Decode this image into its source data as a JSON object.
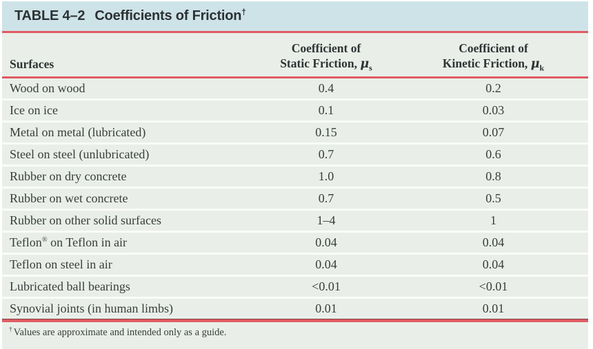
{
  "table": {
    "title": {
      "label": "TABLE 4–2",
      "text": "Coefficients of Friction",
      "sup": "†"
    },
    "columns": {
      "surfaces": "Surfaces",
      "static": {
        "line1": "Coefficient of",
        "line2": "Static Friction, ",
        "mu": "μ",
        "sub": "s"
      },
      "kinetic": {
        "line1": "Coefficient of",
        "line2": "Kinetic Friction, ",
        "mu": "μ",
        "sub": "k"
      }
    },
    "rows": [
      {
        "surface_pre": "Wood on wood",
        "surface_sup": "",
        "surface_post": "",
        "static": "0.4",
        "kinetic": "0.2"
      },
      {
        "surface_pre": "Ice on ice",
        "surface_sup": "",
        "surface_post": "",
        "static": "0.1",
        "kinetic": "0.03"
      },
      {
        "surface_pre": "Metal on metal (lubricated)",
        "surface_sup": "",
        "surface_post": "",
        "static": "0.15",
        "kinetic": "0.07"
      },
      {
        "surface_pre": "Steel on steel (unlubricated)",
        "surface_sup": "",
        "surface_post": "",
        "static": "0.7",
        "kinetic": "0.6"
      },
      {
        "surface_pre": "Rubber on dry concrete",
        "surface_sup": "",
        "surface_post": "",
        "static": "1.0",
        "kinetic": "0.8"
      },
      {
        "surface_pre": "Rubber on wet concrete",
        "surface_sup": "",
        "surface_post": "",
        "static": "0.7",
        "kinetic": "0.5"
      },
      {
        "surface_pre": "Rubber on other solid surfaces",
        "surface_sup": "",
        "surface_post": "",
        "static": "1–4",
        "kinetic": "1"
      },
      {
        "surface_pre": "Teflon",
        "surface_sup": "®",
        "surface_post": " on Teflon in air",
        "static": "0.04",
        "kinetic": "0.04"
      },
      {
        "surface_pre": "Teflon on steel in air",
        "surface_sup": "",
        "surface_post": "",
        "static": "0.04",
        "kinetic": "0.04"
      },
      {
        "surface_pre": "Lubricated ball bearings",
        "surface_sup": "",
        "surface_post": "",
        "static": "<0.01",
        "kinetic": "<0.01"
      },
      {
        "surface_pre": "Synovial joints (in human limbs)",
        "surface_sup": "",
        "surface_post": "",
        "static": "0.01",
        "kinetic": "0.01"
      }
    ],
    "footnote": {
      "sup": "†",
      "text": "Values are approximate and intended only as a guide."
    }
  },
  "colors": {
    "title_band": "#cee3e8",
    "body_band": "#e9efe8",
    "rule_red": "#e05a62",
    "text": "#393d3c"
  }
}
